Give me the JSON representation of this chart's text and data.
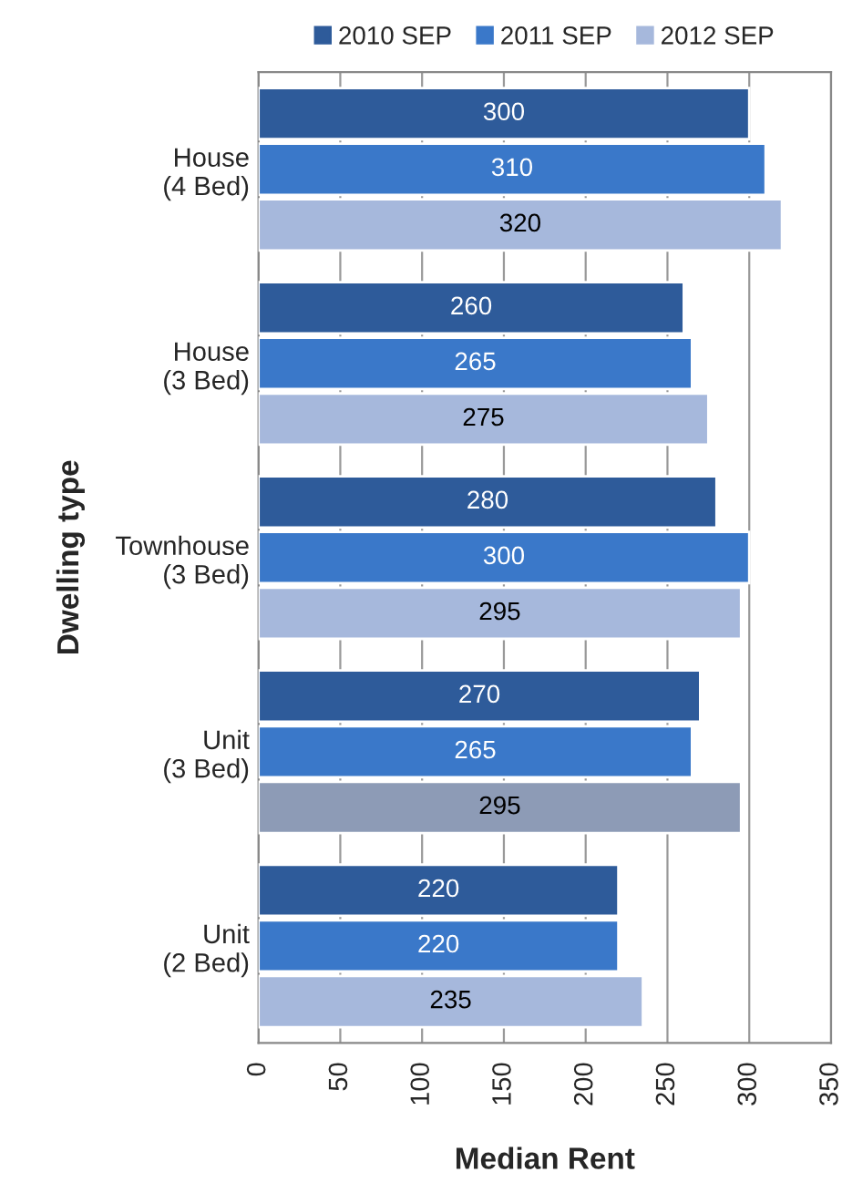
{
  "chart_data": {
    "type": "bar",
    "orientation": "horizontal",
    "xlabel": "Median Rent",
    "ylabel": "Dwelling type",
    "categories": [
      "House\n(4 Bed)",
      "House\n(3 Bed)",
      "Townhouse\n(3 Bed)",
      "Unit\n(3 Bed)",
      "Unit\n(2 Bed)"
    ],
    "series": [
      {
        "name": "2010 SEP",
        "color": "#2e5b9a",
        "values": [
          300,
          260,
          280,
          270,
          220
        ]
      },
      {
        "name": "2011 SEP",
        "color": "#3a78c9",
        "values": [
          310,
          265,
          300,
          265,
          220
        ]
      },
      {
        "name": "2012 SEP",
        "color": "#a6b8dc",
        "colors": [
          "#a6b8dc",
          "#a6b8dc",
          "#a6b8dc",
          "#8d9bb6",
          "#a6b8dc"
        ],
        "values": [
          320,
          275,
          295,
          295,
          235
        ]
      }
    ],
    "xlim": [
      0,
      350
    ],
    "xticks": [
      0,
      50,
      100,
      150,
      200,
      250,
      300,
      350
    ],
    "grid": "x",
    "legend": "top",
    "data_labels": true
  }
}
